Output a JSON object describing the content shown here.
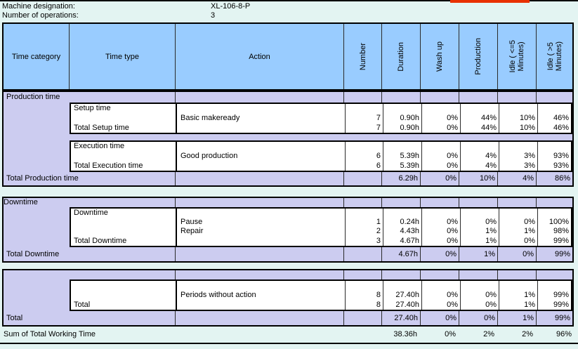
{
  "colors": {
    "header_blue": "#99CCFF",
    "section_lavender": "#CCCCF0",
    "page_cyan": "#E3F4F2",
    "accent_red": "#E83000",
    "border": "#000000"
  },
  "meta": {
    "machine_label": "Machine designation:",
    "machine_value": "XL-106-8-P",
    "operations_label": "Number of operations:",
    "operations_value": "3"
  },
  "header": {
    "time_category": "Time category",
    "time_type": "Time type",
    "action": "Action",
    "number": "Number",
    "duration": "Duration",
    "washup": "Wash up",
    "production": "Production",
    "idle_le5": "Idle ( <=5\nMinutes)",
    "idle_gt5": "Idle ( >5\nMinutes)"
  },
  "sections": [
    {
      "label": "Production time",
      "blocks": [
        {
          "type_header": "Setup time",
          "rows": [
            {
              "action": "Basic makeready",
              "number": "7",
              "duration": "0.90h",
              "washup": "0%",
              "production": "44%",
              "idle_le5": "10%",
              "idle_gt5": "46%"
            }
          ],
          "total_label": "Total Setup time",
          "total": {
            "number": "7",
            "duration": "0.90h",
            "washup": "0%",
            "production": "44%",
            "idle_le5": "10%",
            "idle_gt5": "46%"
          }
        },
        {
          "type_header": "Execution time",
          "rows": [
            {
              "action": "Good production",
              "number": "6",
              "duration": "5.39h",
              "washup": "0%",
              "production": "4%",
              "idle_le5": "3%",
              "idle_gt5": "93%"
            }
          ],
          "total_label": "Total Execution time",
          "total": {
            "number": "6",
            "duration": "5.39h",
            "washup": "0%",
            "production": "4%",
            "idle_le5": "3%",
            "idle_gt5": "93%"
          }
        }
      ],
      "total_label": "Total Production time",
      "total": {
        "number": "",
        "duration": "6.29h",
        "washup": "0%",
        "production": "10%",
        "idle_le5": "4%",
        "idle_gt5": "86%"
      }
    },
    {
      "label": "Downtime",
      "blocks": [
        {
          "type_header": "Downtime",
          "rows": [
            {
              "action": "Pause",
              "number": "1",
              "duration": "0.24h",
              "washup": "0%",
              "production": "0%",
              "idle_le5": "0%",
              "idle_gt5": "100%"
            },
            {
              "action": "Repair",
              "number": "2",
              "duration": "4.43h",
              "washup": "0%",
              "production": "1%",
              "idle_le5": "1%",
              "idle_gt5": "98%"
            }
          ],
          "total_label": "Total Downtime",
          "total": {
            "number": "3",
            "duration": "4.67h",
            "washup": "0%",
            "production": "1%",
            "idle_le5": "0%",
            "idle_gt5": "99%"
          }
        }
      ],
      "total_label": "Total Downtime",
      "total": {
        "number": "",
        "duration": "4.67h",
        "washup": "0%",
        "production": "1%",
        "idle_le5": "0%",
        "idle_gt5": "99%"
      }
    },
    {
      "label": "",
      "blocks": [
        {
          "type_header": "",
          "rows": [
            {
              "action": "Periods without action",
              "number": "8",
              "duration": "27.40h",
              "washup": "0%",
              "production": "0%",
              "idle_le5": "1%",
              "idle_gt5": "99%"
            }
          ],
          "total_label": "Total",
          "total": {
            "number": "8",
            "duration": "27.40h",
            "washup": "0%",
            "production": "0%",
            "idle_le5": "1%",
            "idle_gt5": "99%"
          }
        }
      ],
      "total_label": "Total",
      "total": {
        "number": "",
        "duration": "27.40h",
        "washup": "0%",
        "production": "0%",
        "idle_le5": "1%",
        "idle_gt5": "99%"
      }
    }
  ],
  "sum_row": {
    "label": "Sum of Total Working Time",
    "number": "",
    "duration": "38.36h",
    "washup": "0%",
    "production": "2%",
    "idle_le5": "2%",
    "idle_gt5": "96%"
  }
}
